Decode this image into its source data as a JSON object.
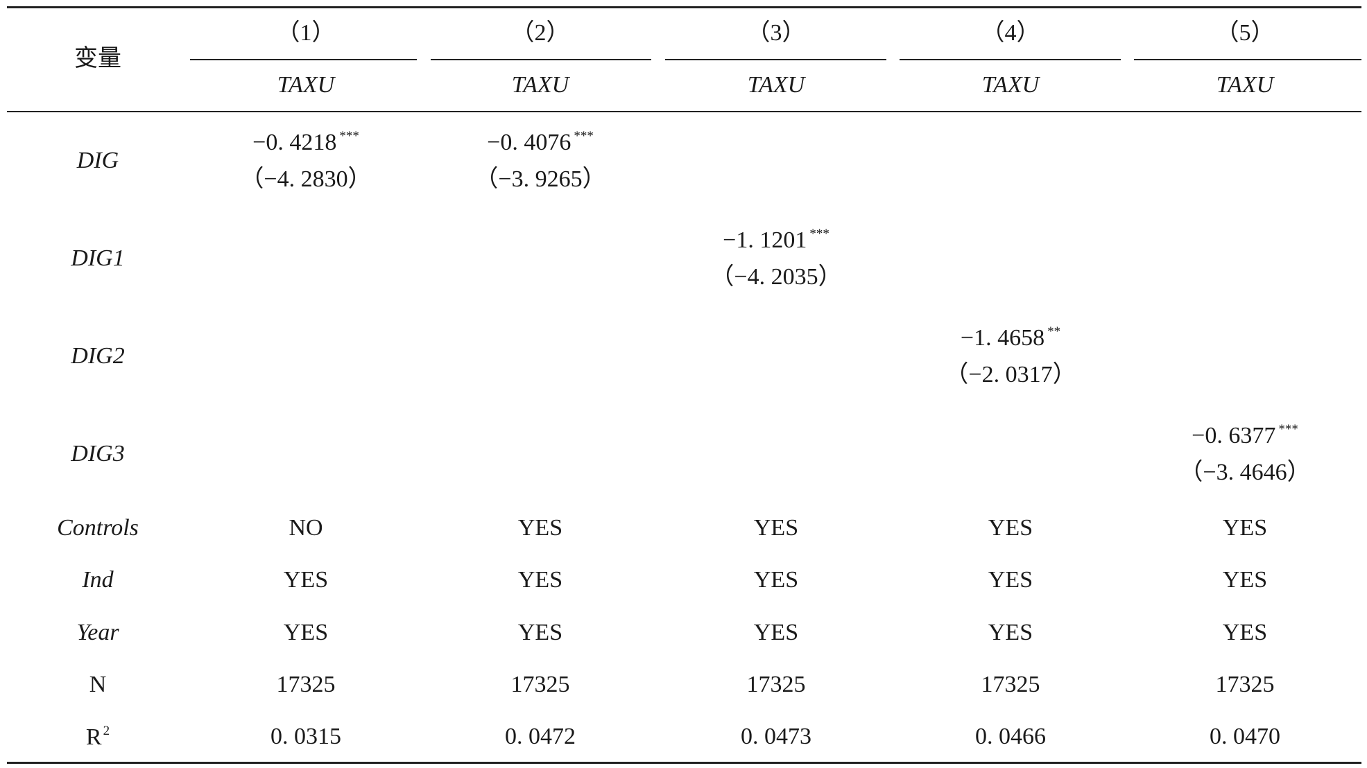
{
  "table": {
    "stub_header": "变量",
    "columns": [
      "（1）",
      "（2）",
      "（3）",
      "（4）",
      "（5）"
    ],
    "dep_vars": [
      "TAXU",
      "TAXU",
      "TAXU",
      "TAXU",
      "TAXU"
    ],
    "rows": [
      {
        "label": "DIG",
        "cells": [
          {
            "col": 0,
            "coef": "−0. 4218",
            "stars": "***",
            "t": "（−4. 2830）"
          },
          {
            "col": 1,
            "coef": "−0. 4076",
            "stars": "***",
            "t": "（−3. 9265）"
          }
        ]
      },
      {
        "label": "DIG1",
        "cells": [
          {
            "col": 2,
            "coef": "−1. 1201",
            "stars": "***",
            "t": "（−4. 2035）"
          }
        ]
      },
      {
        "label": "DIG2",
        "cells": [
          {
            "col": 3,
            "coef": "−1. 4658",
            "stars": "**",
            "t": "（−2. 0317）"
          }
        ]
      },
      {
        "label": "DIG3",
        "cells": [
          {
            "col": 4,
            "coef": "−0. 6377",
            "stars": "***",
            "t": "（−3. 4646）"
          }
        ]
      }
    ],
    "stats": [
      {
        "label": "Controls",
        "values": [
          "NO",
          "YES",
          "YES",
          "YES",
          "YES"
        ]
      },
      {
        "label": "Ind",
        "values": [
          "YES",
          "YES",
          "YES",
          "YES",
          "YES"
        ]
      },
      {
        "label": "Year",
        "values": [
          "YES",
          "YES",
          "YES",
          "YES",
          "YES"
        ]
      },
      {
        "label": "N",
        "values": [
          17325,
          17325,
          17325,
          17325,
          17325
        ]
      },
      {
        "label": "R",
        "label_sup": "2",
        "values": [
          "0. 0315",
          "0. 0472",
          "0. 0473",
          "0. 0466",
          "0. 0470"
        ]
      }
    ]
  }
}
